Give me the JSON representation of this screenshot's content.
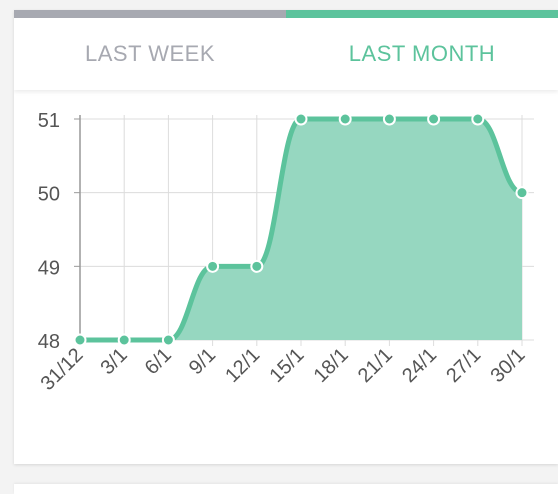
{
  "tabs": {
    "week_label": "LAST WEEK",
    "month_label": "LAST MONTH",
    "active": "month"
  },
  "colors": {
    "accent": "#5cc39c",
    "area_fill": "#96d7c0",
    "inactive": "#a7a9b1",
    "grid": "#dcdcdc",
    "axis_text": "#555555"
  },
  "chart_data": {
    "type": "area",
    "x": [
      "31/12",
      "3/1",
      "6/1",
      "9/1",
      "12/1",
      "15/1",
      "18/1",
      "21/1",
      "24/1",
      "27/1",
      "30/1"
    ],
    "values": [
      48,
      48,
      48,
      49,
      49,
      51,
      51,
      51,
      51,
      51,
      50
    ],
    "yticks": [
      48,
      49,
      50,
      51
    ],
    "ylim": [
      48,
      51
    ],
    "grid": true,
    "title": "",
    "xlabel": "",
    "ylabel": ""
  }
}
